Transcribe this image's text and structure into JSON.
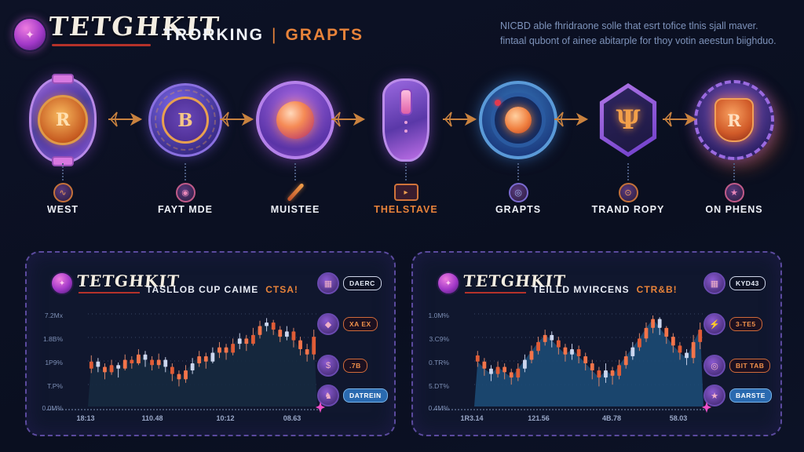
{
  "header": {
    "logo_text": "TETGHKIT",
    "tagline_left": "TRORKING",
    "tagline_sep": "|",
    "tagline_right": "GRAPTS",
    "description_line1": "NICBD able fhridraone solle that esrt tofice tlnis sjall maver.",
    "description_line2": "fintaal qubont of ainee abitarple for thoy votin aeestun biighduo."
  },
  "colors": {
    "background": "#0c1124",
    "panel_background": "#10172e",
    "panel_border": "#5b4a9e",
    "accent_orange": "#e8833a",
    "accent_red": "#b5322a",
    "candle_orange": "#f2744a",
    "candle_light": "#ccd6ee",
    "marker_pink": "#ee4fc8",
    "text_muted": "#7e93bb"
  },
  "flow": {
    "items": [
      {
        "label": "WEST",
        "badge_icon": "rune-shield-badge",
        "badge_glyph": "R",
        "mini_icon": "swirl-coin-icon",
        "mini_glyph": "∿"
      },
      {
        "label": "FAYT MDE",
        "badge_icon": "b-coin-badge",
        "badge_glyph": "B",
        "mini_icon": "token-icon",
        "mini_glyph": "◉"
      },
      {
        "label": "MUISTEE",
        "badge_icon": "orb-ring-badge",
        "badge_glyph": "",
        "mini_icon": "pencil-icon",
        "mini_glyph": ""
      },
      {
        "label": "THELSTAVE",
        "badge_icon": "mouse-badge",
        "badge_glyph": "",
        "mini_icon": "monitor-icon",
        "mini_glyph": "▸"
      },
      {
        "label": "GRAPTS",
        "badge_icon": "lens-orb-badge",
        "badge_glyph": "",
        "mini_icon": "globe-icon",
        "mini_glyph": "◎"
      },
      {
        "label": "TRAND ROPY",
        "badge_icon": "hex-trident-badge",
        "badge_glyph": "Ψ",
        "mini_icon": "flame-coin-icon",
        "mini_glyph": "⊙"
      },
      {
        "label": "ON PHENS",
        "badge_icon": "gear-shield-badge",
        "badge_glyph": "R",
        "mini_icon": "star-coin-icon",
        "mini_glyph": "★"
      }
    ]
  },
  "panels": [
    {
      "logo_text": "TETGHKIT",
      "title": "TASLLOB CUP CAIME",
      "title_accent": "CTSA!",
      "buttons": [
        {
          "label": "DAERC",
          "icon": "grid-token-icon",
          "glyph": "▦"
        },
        {
          "label": "XA EX",
          "icon": "gem-token-icon",
          "glyph": "◆"
        },
        {
          "label": ".7B",
          "icon": "dollar-token-icon",
          "glyph": "$"
        },
        {
          "label": "DATREIN",
          "icon": "knight-token-icon",
          "glyph": "♞"
        }
      ]
    },
    {
      "logo_text": "TETGHKIT",
      "title": "TEILLD MVIRCENS",
      "title_accent": "CTR&B!",
      "buttons": [
        {
          "label": "KYD43",
          "icon": "grid-token-icon",
          "glyph": "▦"
        },
        {
          "label": "3-TE5",
          "icon": "bolt-token-icon",
          "glyph": "⚡"
        },
        {
          "label": "BIT TAB",
          "icon": "globe-token-icon",
          "glyph": "◎"
        },
        {
          "label": "BARSTE",
          "icon": "star-token-icon",
          "glyph": "★"
        }
      ]
    }
  ],
  "chart_data": [
    {
      "type": "candlestick",
      "title": "TASLLOB CUP CAIME CTSA!",
      "legend_position": "none",
      "grid": "dotted-horizontal",
      "area_color": "#16293f",
      "y_ticks": [
        "7.2Mx",
        "1.8B%",
        "1P9%",
        "T.P%",
        "0.0M%"
      ],
      "x_ticks": [
        "18:13",
        "110.48",
        "10:12",
        "08.63"
      ],
      "marker": "pink-spark-at-axis-end",
      "candles": [
        [
          40,
          48,
          55,
          35,
          0
        ],
        [
          48,
          42,
          52,
          36,
          1
        ],
        [
          42,
          36,
          46,
          28,
          0
        ],
        [
          36,
          44,
          50,
          33,
          0
        ],
        [
          44,
          40,
          47,
          30,
          1
        ],
        [
          40,
          50,
          56,
          38,
          0
        ],
        [
          50,
          46,
          54,
          40,
          0
        ],
        [
          46,
          56,
          62,
          44,
          0
        ],
        [
          56,
          50,
          60,
          42,
          1
        ],
        [
          50,
          44,
          54,
          38,
          0
        ],
        [
          44,
          50,
          57,
          40,
          0
        ],
        [
          50,
          42,
          53,
          36,
          1
        ],
        [
          42,
          34,
          46,
          26,
          0
        ],
        [
          34,
          28,
          38,
          20,
          0
        ],
        [
          28,
          38,
          44,
          24,
          0
        ],
        [
          38,
          46,
          52,
          34,
          1
        ],
        [
          46,
          54,
          60,
          42,
          0
        ],
        [
          54,
          48,
          58,
          40,
          0
        ],
        [
          48,
          58,
          64,
          46,
          1
        ],
        [
          58,
          64,
          70,
          52,
          0
        ],
        [
          64,
          58,
          68,
          50,
          0
        ],
        [
          58,
          68,
          74,
          55,
          0
        ],
        [
          68,
          74,
          80,
          62,
          1
        ],
        [
          74,
          68,
          78,
          60,
          0
        ],
        [
          68,
          78,
          86,
          66,
          0
        ],
        [
          78,
          88,
          94,
          74,
          0
        ],
        [
          88,
          92,
          97,
          82,
          1
        ],
        [
          92,
          84,
          95,
          78,
          0
        ],
        [
          84,
          76,
          88,
          70,
          0
        ],
        [
          76,
          82,
          88,
          72,
          1
        ],
        [
          82,
          72,
          86,
          64,
          0
        ],
        [
          72,
          62,
          76,
          55,
          0
        ],
        [
          62,
          56,
          68,
          48,
          0
        ],
        [
          56,
          76,
          84,
          50,
          0
        ]
      ]
    },
    {
      "type": "candlestick",
      "title": "TEILLD MVIRCENS CTR&B!",
      "legend_position": "none",
      "grid": "dotted-horizontal",
      "area_color": "#1b4a73",
      "y_ticks": [
        "1.0M%",
        "3.C9%",
        "0.TR%",
        "5.DT%",
        "0.4M%"
      ],
      "x_ticks": [
        "1R3.14",
        "121.56",
        "4B.78",
        "58.03"
      ],
      "marker": "pink-spark-at-axis-end",
      "candles": [
        [
          55,
          48,
          60,
          42,
          0
        ],
        [
          48,
          40,
          52,
          32,
          0
        ],
        [
          40,
          34,
          44,
          26,
          1
        ],
        [
          34,
          42,
          48,
          30,
          0
        ],
        [
          42,
          36,
          46,
          28,
          0
        ],
        [
          36,
          30,
          40,
          22,
          0
        ],
        [
          30,
          40,
          46,
          26,
          0
        ],
        [
          40,
          50,
          56,
          36,
          1
        ],
        [
          50,
          60,
          66,
          46,
          0
        ],
        [
          60,
          70,
          76,
          56,
          0
        ],
        [
          70,
          78,
          84,
          66,
          0
        ],
        [
          78,
          72,
          82,
          64,
          1
        ],
        [
          72,
          64,
          76,
          56,
          0
        ],
        [
          64,
          56,
          68,
          48,
          0
        ],
        [
          56,
          62,
          68,
          50,
          1
        ],
        [
          62,
          54,
          66,
          46,
          0
        ],
        [
          54,
          46,
          58,
          38,
          0
        ],
        [
          46,
          38,
          50,
          28,
          0
        ],
        [
          38,
          30,
          42,
          20,
          0
        ],
        [
          30,
          38,
          46,
          24,
          1
        ],
        [
          38,
          32,
          42,
          22,
          0
        ],
        [
          32,
          44,
          50,
          28,
          0
        ],
        [
          44,
          54,
          60,
          40,
          0
        ],
        [
          54,
          64,
          70,
          50,
          1
        ],
        [
          64,
          74,
          80,
          60,
          0
        ],
        [
          74,
          86,
          92,
          70,
          0
        ],
        [
          86,
          96,
          100,
          80,
          0
        ],
        [
          96,
          86,
          98,
          78,
          1
        ],
        [
          86,
          76,
          88,
          68,
          0
        ],
        [
          76,
          66,
          80,
          58,
          0
        ],
        [
          66,
          58,
          70,
          50,
          0
        ],
        [
          58,
          52,
          62,
          44,
          1
        ],
        [
          52,
          70,
          78,
          46,
          0
        ],
        [
          70,
          84,
          92,
          62,
          0
        ]
      ]
    }
  ]
}
